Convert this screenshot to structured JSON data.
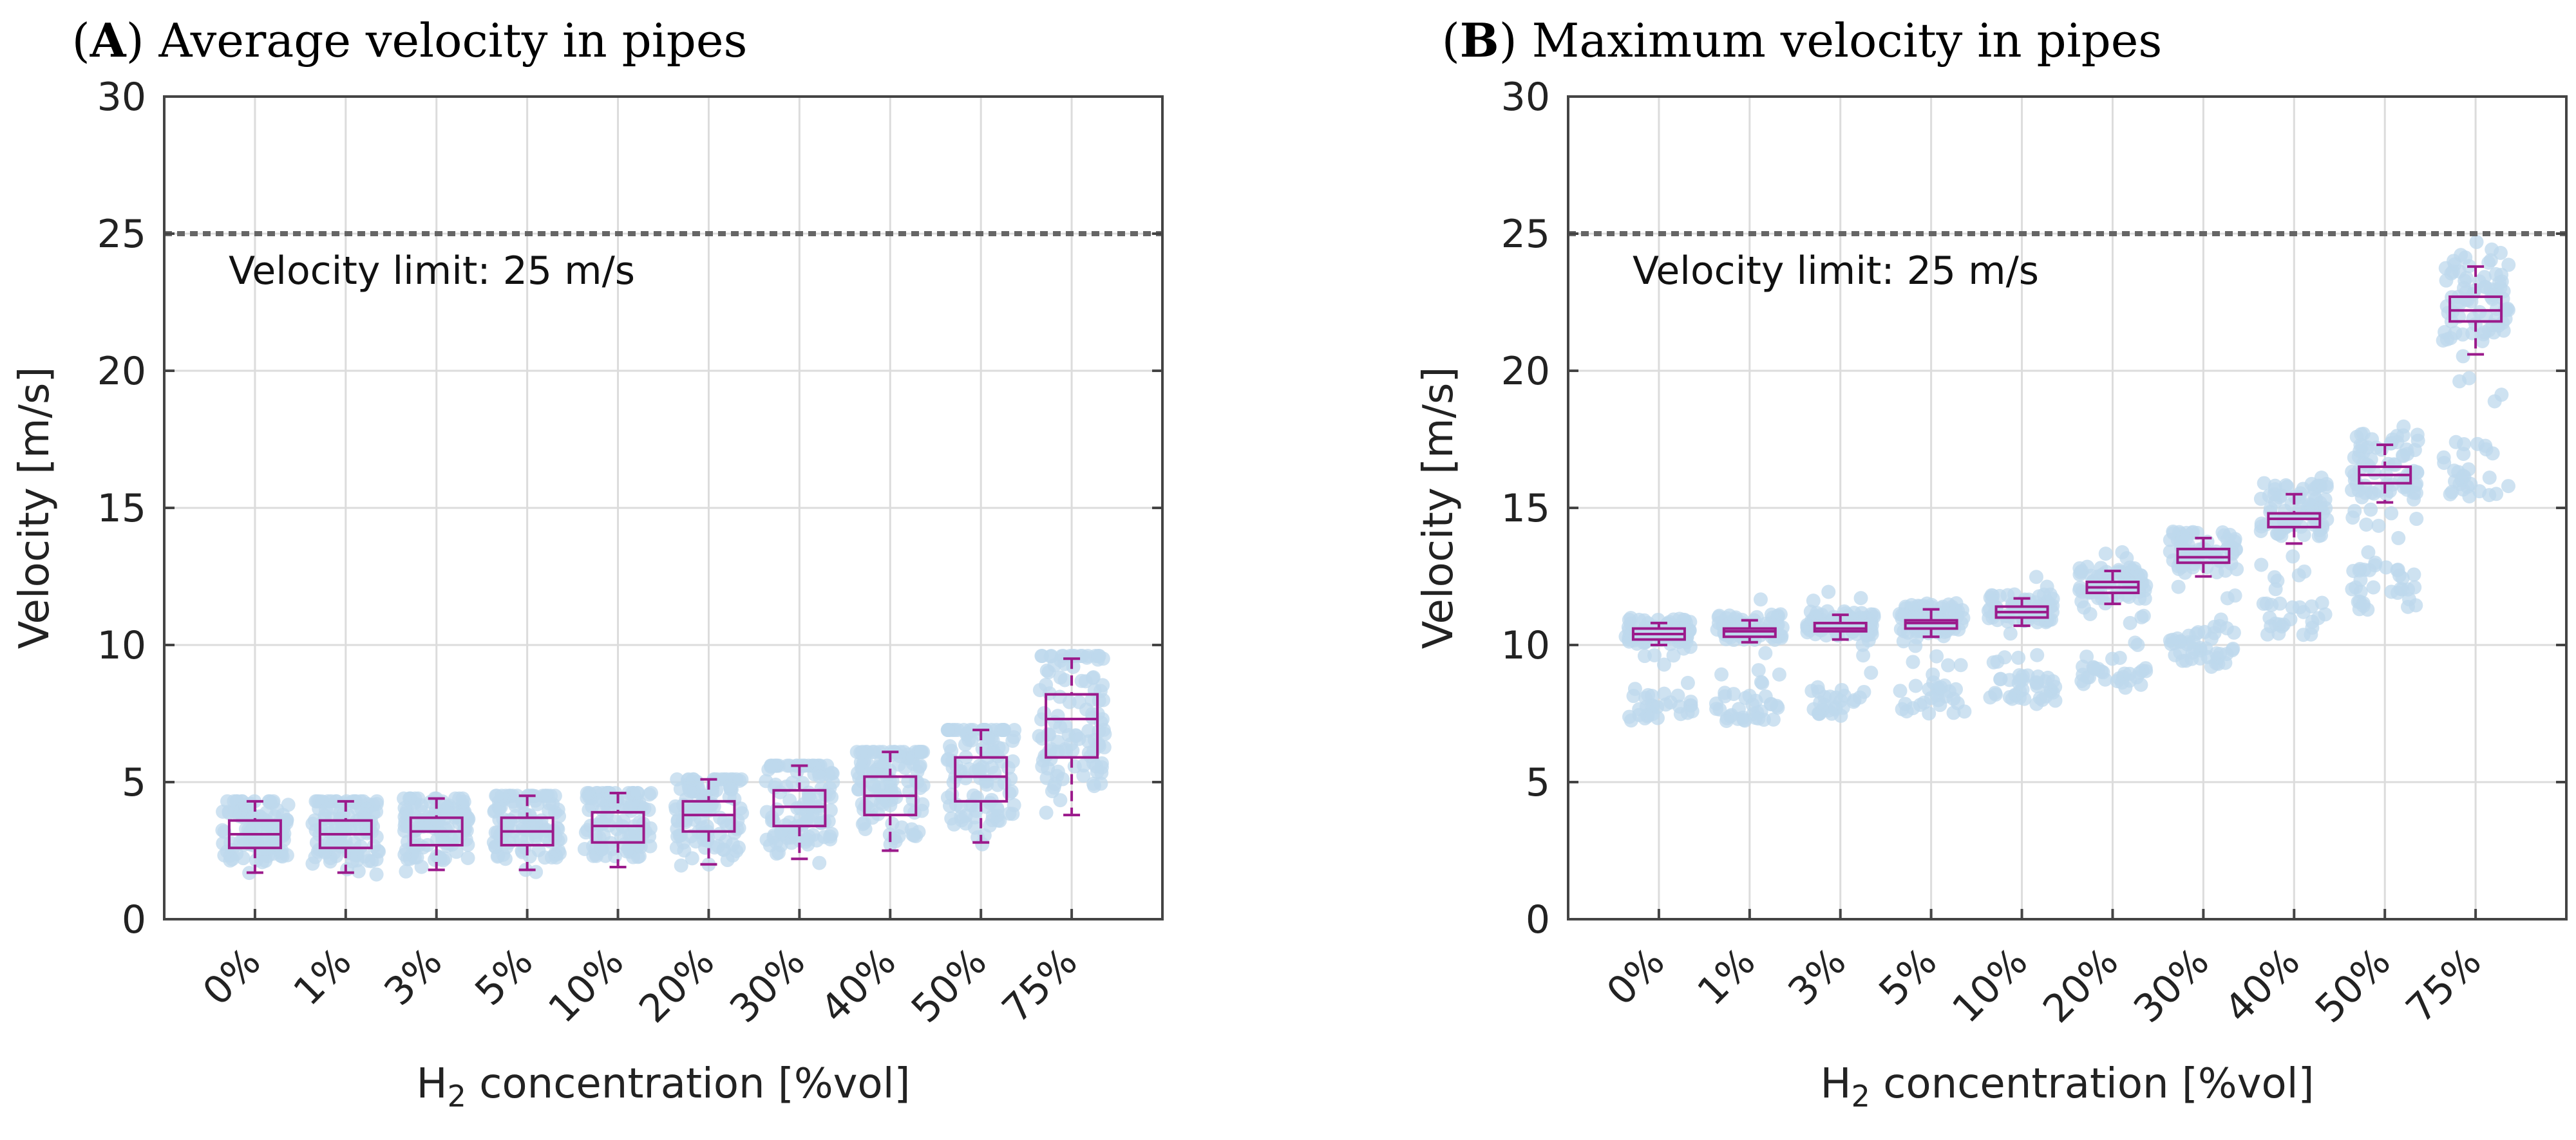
{
  "chart_data": [
    {
      "type": "box",
      "panel_letter": "A",
      "title": "Average velocity in pipes",
      "xlabel_main": "H",
      "xlabel_sub": "2",
      "xlabel_rest": " concentration [%vol]",
      "ylabel": "Velocity [m/s]",
      "ylim": [
        0,
        30
      ],
      "yticks": [
        "0",
        "5",
        "10",
        "15",
        "20",
        "25",
        "30"
      ],
      "categories": [
        "0%",
        "1%",
        "3%",
        "5%",
        "10%",
        "20%",
        "30%",
        "40%",
        "50%",
        "75%"
      ],
      "threshold": {
        "value": 25,
        "label": "Velocity limit: 25 m/s"
      },
      "boxes": [
        {
          "min": 1.7,
          "q1": 2.6,
          "median": 3.1,
          "q3": 3.6,
          "max": 4.3,
          "scatter_low": 1.6,
          "scatter_high": 4.3
        },
        {
          "min": 1.7,
          "q1": 2.6,
          "median": 3.1,
          "q3": 3.6,
          "max": 4.3,
          "scatter_low": 1.6,
          "scatter_high": 4.3
        },
        {
          "min": 1.8,
          "q1": 2.7,
          "median": 3.2,
          "q3": 3.7,
          "max": 4.4,
          "scatter_low": 1.7,
          "scatter_high": 4.4
        },
        {
          "min": 1.8,
          "q1": 2.7,
          "median": 3.2,
          "q3": 3.7,
          "max": 4.5,
          "scatter_low": 1.7,
          "scatter_high": 4.5
        },
        {
          "min": 1.9,
          "q1": 2.8,
          "median": 3.4,
          "q3": 3.9,
          "max": 4.6,
          "scatter_low": 1.8,
          "scatter_high": 4.6
        },
        {
          "min": 2.0,
          "q1": 3.2,
          "median": 3.8,
          "q3": 4.3,
          "max": 5.1,
          "scatter_low": 1.9,
          "scatter_high": 5.1
        },
        {
          "min": 2.2,
          "q1": 3.4,
          "median": 4.1,
          "q3": 4.7,
          "max": 5.6,
          "scatter_low": 2.0,
          "scatter_high": 5.6
        },
        {
          "min": 2.5,
          "q1": 3.8,
          "median": 4.5,
          "q3": 5.2,
          "max": 6.1,
          "scatter_low": 2.3,
          "scatter_high": 6.1
        },
        {
          "min": 2.8,
          "q1": 4.3,
          "median": 5.2,
          "q3": 5.9,
          "max": 6.9,
          "scatter_low": 2.6,
          "scatter_high": 6.9
        },
        {
          "min": 3.8,
          "q1": 5.9,
          "median": 7.3,
          "q3": 8.2,
          "max": 9.5,
          "scatter_low": 3.6,
          "scatter_high": 9.6
        }
      ]
    },
    {
      "type": "box",
      "panel_letter": "B",
      "title": "Maximum velocity in pipes",
      "xlabel_main": "H",
      "xlabel_sub": "2",
      "xlabel_rest": " concentration [%vol]",
      "ylabel": "Velocity [m/s]",
      "ylim": [
        0,
        30
      ],
      "yticks": [
        "0",
        "5",
        "10",
        "15",
        "20",
        "25",
        "30"
      ],
      "categories": [
        "0%",
        "1%",
        "3%",
        "5%",
        "10%",
        "20%",
        "30%",
        "40%",
        "50%",
        "75%"
      ],
      "threshold": {
        "value": 25,
        "label": "Velocity limit: 25 m/s"
      },
      "boxes": [
        {
          "min": 10.0,
          "q1": 10.2,
          "median": 10.4,
          "q3": 10.6,
          "max": 10.8,
          "scatter_low": 7.2,
          "scatter_high": 11.8
        },
        {
          "min": 10.1,
          "q1": 10.3,
          "median": 10.5,
          "q3": 10.6,
          "max": 10.9,
          "scatter_low": 7.2,
          "scatter_high": 11.9
        },
        {
          "min": 10.2,
          "q1": 10.5,
          "median": 10.6,
          "q3": 10.8,
          "max": 11.1,
          "scatter_low": 7.4,
          "scatter_high": 12.0
        },
        {
          "min": 10.3,
          "q1": 10.6,
          "median": 10.8,
          "q3": 10.9,
          "max": 11.3,
          "scatter_low": 7.5,
          "scatter_high": 12.2
        },
        {
          "min": 10.7,
          "q1": 11.0,
          "median": 11.2,
          "q3": 11.4,
          "max": 11.7,
          "scatter_low": 7.8,
          "scatter_high": 12.7
        },
        {
          "min": 11.5,
          "q1": 11.9,
          "median": 12.1,
          "q3": 12.3,
          "max": 12.7,
          "scatter_low": 8.4,
          "scatter_high": 13.7
        },
        {
          "min": 12.5,
          "q1": 13.0,
          "median": 13.2,
          "q3": 13.5,
          "max": 13.9,
          "scatter_low": 9.2,
          "scatter_high": 14.9
        },
        {
          "min": 13.7,
          "q1": 14.3,
          "median": 14.6,
          "q3": 14.8,
          "max": 15.5,
          "scatter_low": 10.1,
          "scatter_high": 16.5
        },
        {
          "min": 15.2,
          "q1": 15.9,
          "median": 16.2,
          "q3": 16.5,
          "max": 17.3,
          "scatter_low": 11.2,
          "scatter_high": 18.3
        },
        {
          "min": 20.6,
          "q1": 21.8,
          "median": 22.2,
          "q3": 22.7,
          "max": 23.8,
          "scatter_low": 15.3,
          "scatter_high": 25.0
        }
      ]
    }
  ],
  "colors": {
    "box": "#9b1a8b",
    "scatter": "#bdd8ec",
    "grid": "#dcdcdc",
    "axis": "#444444",
    "threshold": "#666666"
  }
}
